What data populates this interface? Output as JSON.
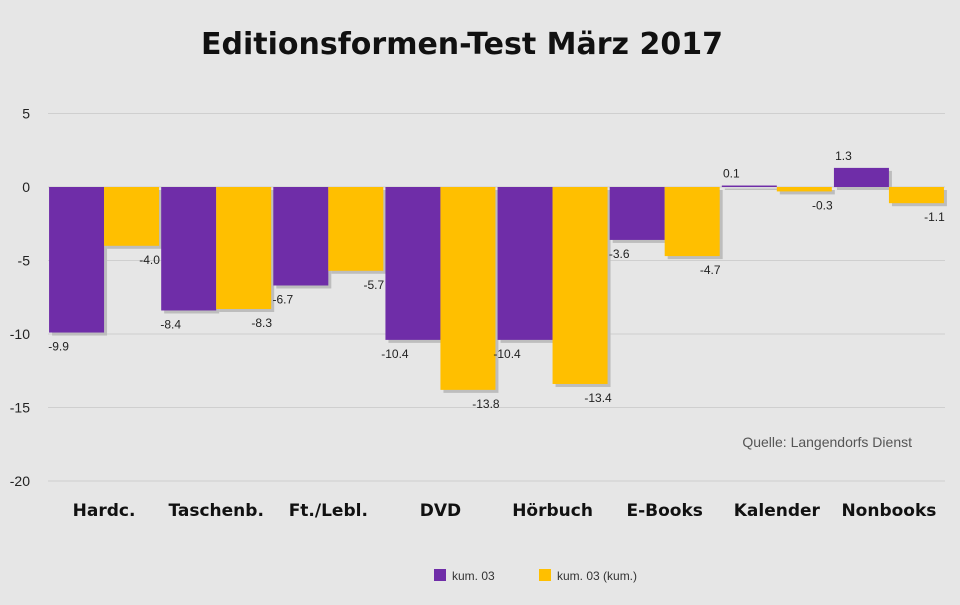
{
  "chart_data": {
    "type": "bar",
    "title": "Editionsformen-Test März 2017",
    "source": "Quelle: Langendorfs Dienst",
    "categories": [
      "Hardc.",
      "Taschenb.",
      "Ft./Lebl.",
      "DVD",
      "Hörbuch",
      "E-Books",
      "Kalender",
      "Nonbooks"
    ],
    "ylim": [
      -20,
      7
    ],
    "yticks": [
      5,
      0,
      -5,
      -10,
      -15,
      -20
    ],
    "grid": true,
    "legend_position": "bottom",
    "series": [
      {
        "name": "kum. 03",
        "color": "#6f2da8",
        "values": [
          -9.9,
          -8.4,
          -6.7,
          -10.4,
          -10.4,
          -3.6,
          0.1,
          1.3
        ],
        "labels": [
          "-9.9",
          "-8.4",
          "-6.7",
          "-10.4",
          "-10.4",
          "-3.6",
          "0.1",
          "1.3"
        ]
      },
      {
        "name": "kum. 03 (kum.)",
        "color": "#ffbf00",
        "values": [
          -4.0,
          -8.3,
          -5.7,
          -13.8,
          -13.4,
          -4.7,
          -0.3,
          -1.1
        ],
        "labels": [
          "-4.0",
          "-8.3",
          "-5.7",
          "-13.8",
          "-13.4",
          "-4.7",
          "-0.3",
          "-1.1"
        ]
      }
    ]
  }
}
